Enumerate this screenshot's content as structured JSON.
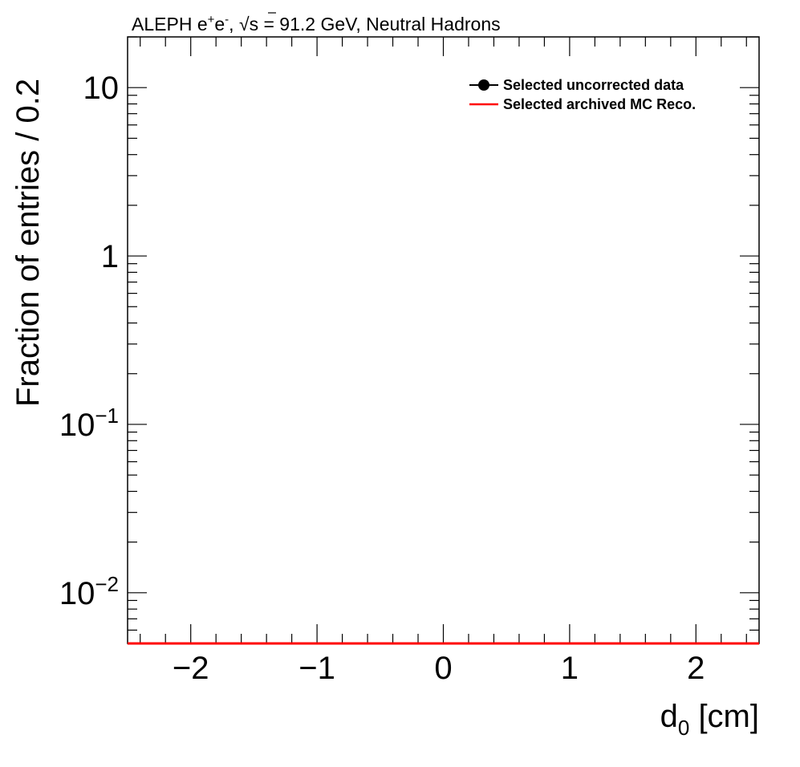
{
  "chart_data": {
    "type": "line",
    "title": {
      "prefix": "ALEPH e",
      "sup1": "+",
      "mid1": "e",
      "sup2": "-",
      "mid2": ", ",
      "sqrt_symbol": "√",
      "sqrt_arg": "s",
      "suffix": " = 91.2 GeV, Neutral Hadrons"
    },
    "xlabel": {
      "main": "d",
      "sub": "0",
      "rest": " [cm]"
    },
    "ylabel": "Fraction of entries / 0.2",
    "xlim": [
      -2.5,
      2.5
    ],
    "ylim": [
      0.005,
      20
    ],
    "y_scale": "log",
    "grid": false,
    "x_ticks": [
      {
        "value": -2,
        "label": "−2"
      },
      {
        "value": -1,
        "label": "−1"
      },
      {
        "value": 0,
        "label": "0"
      },
      {
        "value": 1,
        "label": "1"
      },
      {
        "value": 2,
        "label": "2"
      }
    ],
    "y_ticks": [
      {
        "value": 10,
        "base": "10",
        "exp": ""
      },
      {
        "value": 1,
        "base": "1",
        "exp": ""
      },
      {
        "value": 0.1,
        "base": "10",
        "exp": "−1"
      },
      {
        "value": 0.01,
        "base": "10",
        "exp": "−2"
      }
    ],
    "legend_position": "top-right",
    "series": [
      {
        "name": "Selected uncorrected data",
        "style": "markers",
        "color": "#000000",
        "x": [],
        "y": []
      },
      {
        "name": "Selected archived MC Reco.",
        "style": "line",
        "color": "#ff0000",
        "x": [
          -2.5,
          2.5
        ],
        "y": [
          0.005,
          0.005
        ]
      }
    ]
  }
}
